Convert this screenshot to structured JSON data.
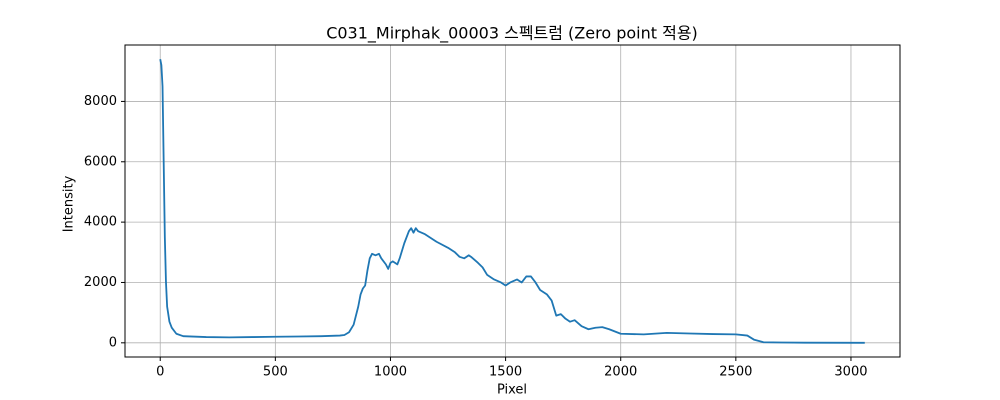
{
  "chart_data": {
    "type": "line",
    "title": "C031_Mirphak_00003 스펙트럼 (Zero point 적용)",
    "x_label": "Pixel",
    "y_label": "Intensity",
    "x": [
      0,
      5,
      10,
      15,
      20,
      25,
      30,
      40,
      50,
      70,
      100,
      200,
      300,
      400,
      500,
      600,
      700,
      780,
      800,
      820,
      840,
      860,
      870,
      880,
      890,
      900,
      910,
      920,
      935,
      950,
      960,
      980,
      990,
      1000,
      1010,
      1030,
      1040,
      1060,
      1080,
      1090,
      1100,
      1110,
      1120,
      1150,
      1200,
      1250,
      1280,
      1300,
      1320,
      1340,
      1350,
      1380,
      1400,
      1420,
      1450,
      1480,
      1500,
      1520,
      1550,
      1570,
      1590,
      1610,
      1630,
      1650,
      1680,
      1700,
      1720,
      1740,
      1760,
      1780,
      1800,
      1830,
      1860,
      1890,
      1920,
      1950,
      2000,
      2100,
      2200,
      2300,
      2400,
      2500,
      2550,
      2580,
      2620,
      2700,
      2800,
      3060
    ],
    "series": [
      {
        "name": "Intensity",
        "color": "#1f77b4",
        "values": [
          9400,
          9200,
          8500,
          6000,
          3500,
          2000,
          1200,
          700,
          500,
          300,
          220,
          190,
          180,
          190,
          200,
          210,
          220,
          240,
          260,
          350,
          600,
          1200,
          1600,
          1800,
          1900,
          2400,
          2800,
          2950,
          2900,
          2950,
          2800,
          2600,
          2450,
          2650,
          2700,
          2600,
          2800,
          3300,
          3700,
          3800,
          3650,
          3800,
          3700,
          3600,
          3350,
          3150,
          3000,
          2850,
          2800,
          2900,
          2850,
          2650,
          2500,
          2250,
          2100,
          2000,
          1900,
          2000,
          2100,
          2000,
          2200,
          2200,
          2000,
          1750,
          1600,
          1400,
          900,
          950,
          800,
          700,
          750,
          550,
          450,
          500,
          520,
          450,
          300,
          280,
          330,
          310,
          290,
          280,
          240,
          100,
          20,
          10,
          5,
          0
        ]
      }
    ],
    "xlim": [
      -153,
      3213
    ],
    "ylim": [
      -470,
      9870
    ],
    "xticks": [
      0,
      500,
      1000,
      1500,
      2000,
      2500,
      3000
    ],
    "yticks": [
      0,
      2000,
      4000,
      6000,
      8000
    ],
    "grid": true
  }
}
